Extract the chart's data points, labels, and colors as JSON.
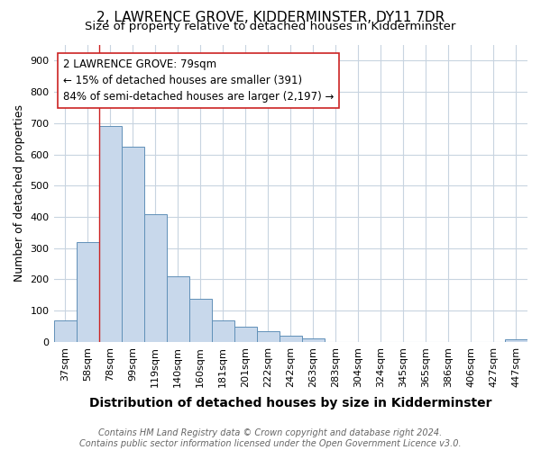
{
  "title": "2, LAWRENCE GROVE, KIDDERMINSTER, DY11 7DR",
  "subtitle": "Size of property relative to detached houses in Kidderminster",
  "xlabel": "Distribution of detached houses by size in Kidderminster",
  "ylabel": "Number of detached properties",
  "footnote1": "Contains HM Land Registry data © Crown copyright and database right 2024.",
  "footnote2": "Contains public sector information licensed under the Open Government Licence v3.0.",
  "categories": [
    "37sqm",
    "58sqm",
    "78sqm",
    "99sqm",
    "119sqm",
    "140sqm",
    "160sqm",
    "181sqm",
    "201sqm",
    "222sqm",
    "242sqm",
    "263sqm",
    "283sqm",
    "304sqm",
    "324sqm",
    "345sqm",
    "365sqm",
    "386sqm",
    "406sqm",
    "427sqm",
    "447sqm"
  ],
  "values": [
    70,
    320,
    690,
    625,
    410,
    210,
    138,
    68,
    48,
    33,
    20,
    10,
    0,
    0,
    0,
    0,
    0,
    0,
    0,
    0,
    8
  ],
  "bar_color": "#c8d8eb",
  "bar_edge_color": "#6090b8",
  "property_line_x": 1.5,
  "annotation_text": "2 LAWRENCE GROVE: 79sqm\n← 15% of detached houses are smaller (391)\n84% of semi-detached houses are larger (2,197) →",
  "annotation_box_color": "#ffffff",
  "annotation_box_edge_color": "#cc2222",
  "line_color": "#cc2222",
  "ylim": [
    0,
    950
  ],
  "yticks": [
    0,
    100,
    200,
    300,
    400,
    500,
    600,
    700,
    800,
    900
  ],
  "background_color": "#ffffff",
  "grid_color": "#c8d4e0",
  "title_fontsize": 11,
  "subtitle_fontsize": 9.5,
  "xlabel_fontsize": 10,
  "ylabel_fontsize": 9,
  "tick_fontsize": 8,
  "annotation_fontsize": 8.5,
  "footnote_fontsize": 7
}
